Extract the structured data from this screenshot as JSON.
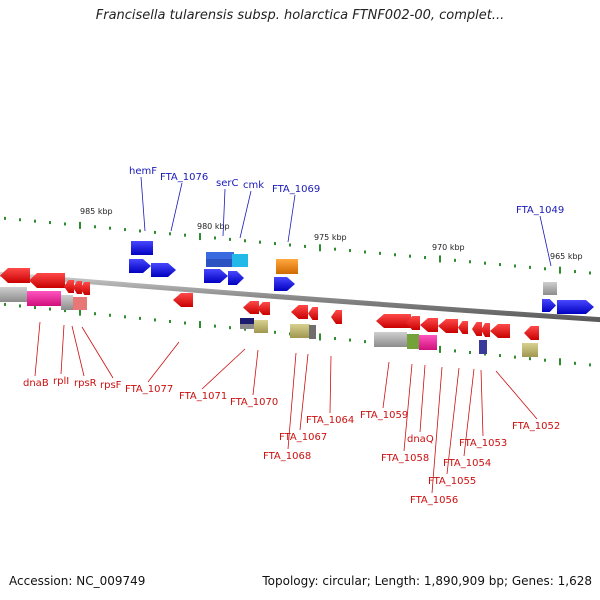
{
  "title": "Francisella tularensis subsp. holarctica FTNF002-00, complet...",
  "footer": {
    "accession": "Accession: NC_009749",
    "topology": "Topology: circular; Length: 1,890,909 bp; Genes: 1,628"
  },
  "colors": {
    "forward_gene_label": "#1a1ab8",
    "reverse_gene_label": "#cc1010",
    "forward_gene": "#1010e0",
    "reverse_gene": "#ee1111",
    "backbone": "#8a8a8a",
    "tick": "#2e8b2e"
  },
  "kbp_marks": [
    "985 kbp",
    "980 kbp",
    "975 kbp",
    "970 kbp",
    "965 kbp"
  ],
  "forward_labels": [
    "hemF",
    "FTA_1076",
    "serC",
    "cmk",
    "FTA_1069",
    "FTA_1049"
  ],
  "reverse_labels": [
    "dnaB",
    "rplI",
    "rpsR",
    "rpsF",
    "FTA_1077",
    "FTA_1071",
    "FTA_1070",
    "FTA_1068",
    "FTA_1067",
    "FTA_1064",
    "FTA_1059",
    "FTA_1058",
    "dnaQ",
    "FTA_1056",
    "FTA_1055",
    "FTA_1054",
    "FTA_1053",
    "FTA_1052"
  ]
}
